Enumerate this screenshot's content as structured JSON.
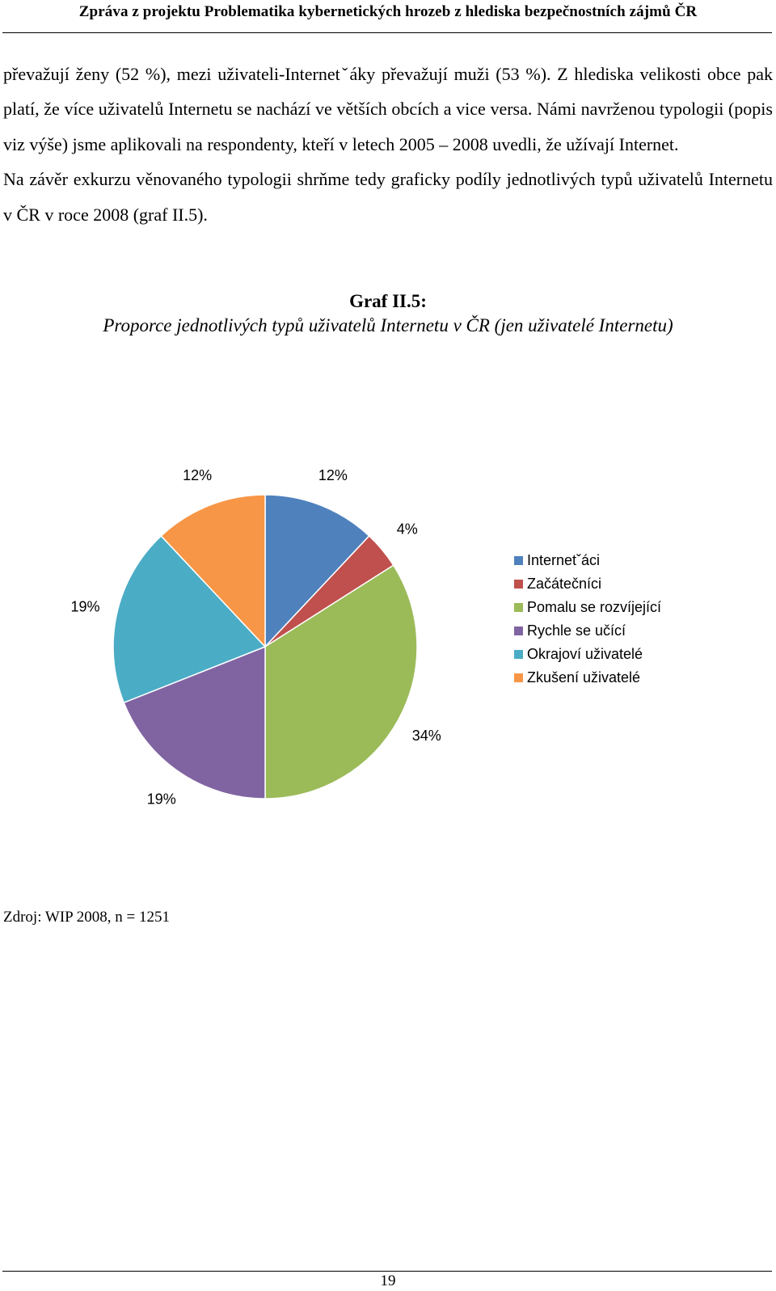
{
  "header": {
    "title": "Zpráva z projektu Problematika kybernetických hrozeb z hlediska bezpečnostních zájmů ČR"
  },
  "body": {
    "paragraphs": [
      "převažují ženy (52 %), mezi uživateli-Internetˇáky převažují muži (53 %). Z hlediska velikosti obce pak platí, že více uživatelů Internetu se nachází ve větších obcích a vice versa. Námi navrženou typologii (popis viz výše) jsme aplikovali na respondenty, kteří v letech 2005 – 2008 uvedli, že užívají Internet.",
      "Na závěr exkurzu věnovaného typologii shrňme tedy graficky podíly jednotlivých typů uživatelů Internetu v ČR v roce 2008 (graf II.5)."
    ]
  },
  "figure": {
    "label": "Graf II.5:",
    "caption": "Proporce jednotlivých typů uživatelů Internetu v ČR (jen uživatelé Internetu)",
    "source": "Zdroj: WIP 2008, n = 1251"
  },
  "chart_data": {
    "type": "pie",
    "title": "",
    "start_angle_deg": 0,
    "direction": "clockwise",
    "slices": [
      {
        "name": "Internetˇáci",
        "value": 12,
        "label": "12%",
        "color": "#4f81bd"
      },
      {
        "name": "Začátečníci",
        "value": 4,
        "label": "4%",
        "color": "#c0504d"
      },
      {
        "name": "Pomalu se rozvíjející",
        "value": 34,
        "label": "34%",
        "color": "#9bbb59"
      },
      {
        "name": "Rychle se učící",
        "value": 19,
        "label": "19%",
        "color": "#8064a2"
      },
      {
        "name": "Okrajoví uživatelé",
        "value": 19,
        "label": "19%",
        "color": "#4bacc6"
      },
      {
        "name": "Zkušení uživatelé",
        "value": 12,
        "label": "12%",
        "color": "#f79646"
      }
    ],
    "legend_position": "right"
  },
  "footer": {
    "page_number": "19"
  }
}
